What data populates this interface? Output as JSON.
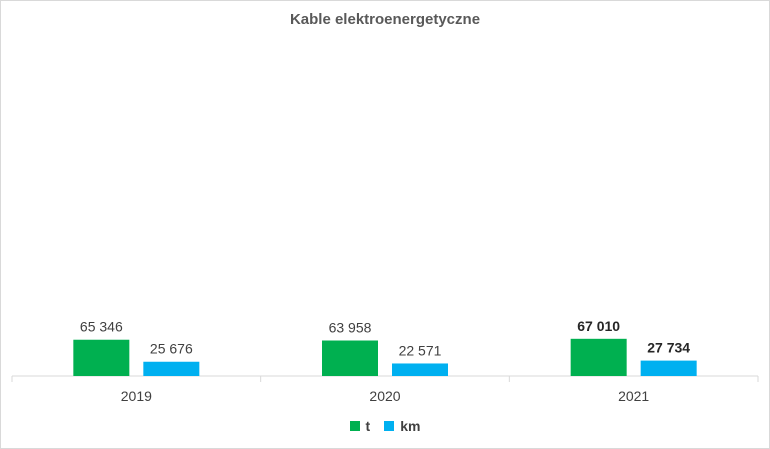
{
  "chart_data": {
    "type": "bar",
    "title": "Kable elektroenergetyczne",
    "categories": [
      "2019",
      "2020",
      "2021"
    ],
    "series": [
      {
        "name": "t",
        "color": "#00b050",
        "values": [
          65346,
          63958,
          67010
        ],
        "labels": [
          "65 346",
          "63 958",
          "67 010"
        ]
      },
      {
        "name": "km",
        "color": "#00b0f0",
        "values": [
          25676,
          22571,
          27734
        ],
        "labels": [
          "25 676",
          "22 571",
          "27 734"
        ]
      }
    ],
    "bold_categories": [
      "2021"
    ],
    "legend_position": "bottom",
    "grid": false
  }
}
